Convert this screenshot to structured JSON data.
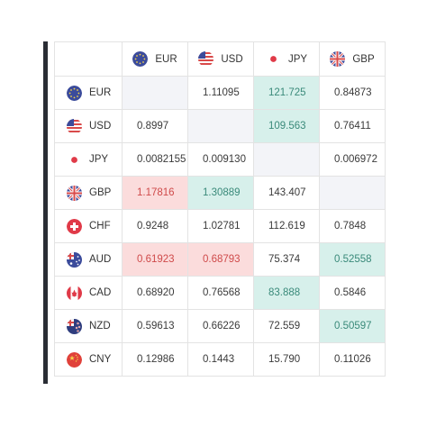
{
  "columns": [
    {
      "code": "EUR",
      "icon": "eu-flag-icon"
    },
    {
      "code": "USD",
      "icon": "us-flag-icon"
    },
    {
      "code": "JPY",
      "icon": "jp-flag-icon"
    },
    {
      "code": "GBP",
      "icon": "gb-flag-icon"
    }
  ],
  "rows": [
    {
      "code": "EUR",
      "icon": "eu-flag-icon",
      "cells": [
        "",
        "1.11095",
        "121.725",
        "0.84873"
      ],
      "hl": [
        "e",
        "",
        "g",
        ""
      ]
    },
    {
      "code": "USD",
      "icon": "us-flag-icon",
      "cells": [
        "0.8997",
        "",
        "109.563",
        "0.76411"
      ],
      "hl": [
        "",
        "e",
        "g",
        ""
      ]
    },
    {
      "code": "JPY",
      "icon": "jp-flag-icon",
      "cells": [
        "0.0082155",
        "0.009130",
        "",
        "0.006972"
      ],
      "hl": [
        "",
        "",
        "e",
        ""
      ]
    },
    {
      "code": "GBP",
      "icon": "gb-flag-icon",
      "cells": [
        "1.17816",
        "1.30889",
        "143.407",
        ""
      ],
      "hl": [
        "r",
        "g",
        "",
        "e"
      ]
    },
    {
      "code": "CHF",
      "icon": "ch-flag-icon",
      "cells": [
        "0.9248",
        "1.02781",
        "112.619",
        "0.7848"
      ],
      "hl": [
        "",
        "",
        "",
        ""
      ]
    },
    {
      "code": "AUD",
      "icon": "au-flag-icon",
      "cells": [
        "0.61923",
        "0.68793",
        "75.374",
        "0.52558"
      ],
      "hl": [
        "r",
        "r",
        "",
        "g"
      ]
    },
    {
      "code": "CAD",
      "icon": "ca-flag-icon",
      "cells": [
        "0.68920",
        "0.76568",
        "83.888",
        "0.5846"
      ],
      "hl": [
        "",
        "",
        "g",
        ""
      ]
    },
    {
      "code": "NZD",
      "icon": "nz-flag-icon",
      "cells": [
        "0.59613",
        "0.66226",
        "72.559",
        "0.50597"
      ],
      "hl": [
        "",
        "",
        "",
        "g"
      ]
    },
    {
      "code": "CNY",
      "icon": "cn-flag-icon",
      "cells": [
        "0.12986",
        "0.1443",
        "15.790",
        "0.11026"
      ],
      "hl": [
        "",
        "",
        "",
        ""
      ]
    }
  ],
  "colors": {
    "positive_bg": "#d7f0eb",
    "positive_text": "#3a8a7a",
    "negative_bg": "#fbdcdc",
    "negative_text": "#cf4a4a",
    "empty_bg": "#f3f4f8"
  }
}
